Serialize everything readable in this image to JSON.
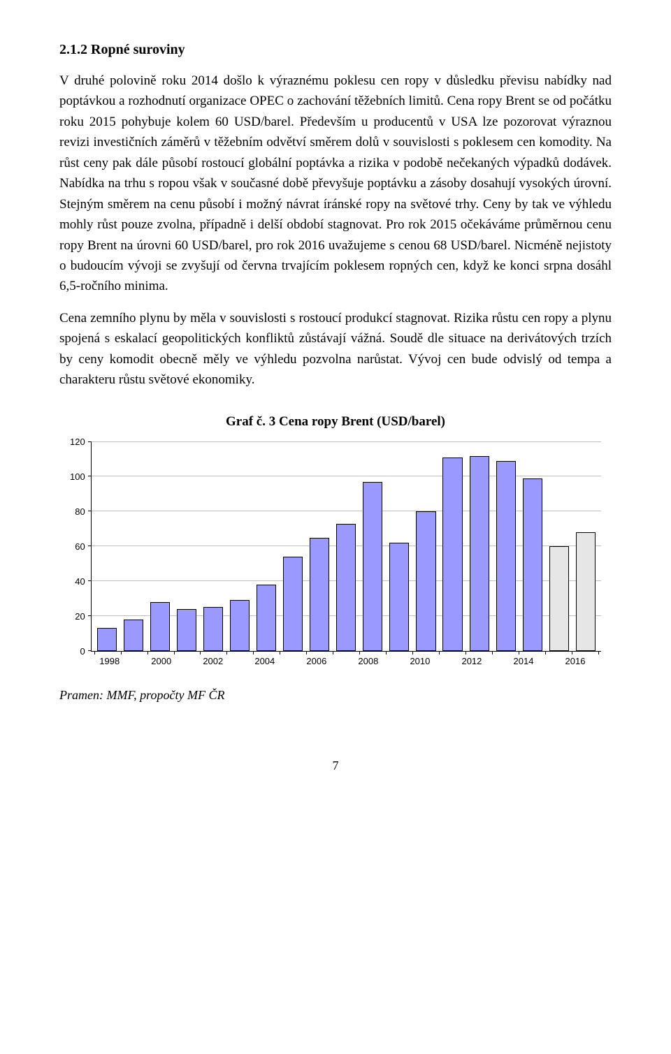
{
  "heading": "2.1.2  Ropné suroviny",
  "paragraphs": [
    "V druhé polovině roku 2014 došlo k výraznému poklesu cen ropy v důsledku převisu nabídky nad poptávkou a rozhodnutí organizace OPEC o zachování těžebních limitů. Cena ropy Brent se od počátku roku 2015 pohybuje kolem 60 USD/barel. Především u producentů v USA lze pozorovat výraznou revizi investičních záměrů v těžebním odvětví směrem dolů v souvislosti s poklesem cen komodity. Na růst ceny pak dále působí rostoucí globální poptávka a rizika v podobě nečekaných výpadků dodávek. Nabídka na trhu s ropou však v současné době převyšuje poptávku a zásoby dosahují vysokých úrovní. Stejným směrem na cenu působí i možný návrat íránské ropy na světové trhy. Ceny by tak ve výhledu mohly růst pouze zvolna, případně i delší období stagnovat. Pro rok 2015 očekáváme průměrnou cenu ropy Brent na úrovni 60 USD/barel, pro rok 2016 uvažujeme s cenou 68 USD/barel. Nicméně nejistoty o budoucím vývoji se zvyšují od června trvajícím poklesem ropných cen, když ke konci srpna dosáhl 6,5-ročního minima.",
    "Cena zemního plynu by měla v souvislosti s rostoucí produkcí stagnovat. Rizika růstu cen ropy a plynu spojená s eskalací geopolitických konfliktů zůstávají vážná. Soudě dle situace na derivátových trzích by ceny komodit obecně měly ve výhledu pozvolna narůstat. Vývoj cen bude odvislý od tempa a charakteru růstu světové ekonomiky."
  ],
  "chart": {
    "title": "Graf č. 3 Cena ropy Brent (USD/barel)",
    "type": "bar",
    "ylim": [
      0,
      120
    ],
    "yticks": [
      0,
      20,
      40,
      60,
      80,
      100,
      120
    ],
    "grid_color": "#bfbfbf",
    "background_color": "#ffffff",
    "axis_color": "#000000",
    "label_fontsize": 13,
    "categories": [
      "1998",
      "1999",
      "2000",
      "2001",
      "2002",
      "2003",
      "2004",
      "2005",
      "2006",
      "2007",
      "2008",
      "2009",
      "2010",
      "2011",
      "2012",
      "2013",
      "2014",
      "2015",
      "2016"
    ],
    "values": [
      13,
      18,
      28,
      24,
      25,
      29,
      38,
      54,
      65,
      73,
      97,
      62,
      80,
      111,
      112,
      109,
      99,
      60,
      68
    ],
    "bar_colors": [
      "#9999ff",
      "#9999ff",
      "#9999ff",
      "#9999ff",
      "#9999ff",
      "#9999ff",
      "#9999ff",
      "#9999ff",
      "#9999ff",
      "#9999ff",
      "#9999ff",
      "#9999ff",
      "#9999ff",
      "#9999ff",
      "#9999ff",
      "#9999ff",
      "#9999ff",
      "#e6e6e6",
      "#e6e6e6"
    ],
    "bar_border_color": "#000000",
    "x_labels_shown": [
      "1998",
      "2000",
      "2002",
      "2004",
      "2006",
      "2008",
      "2010",
      "2012",
      "2014",
      "2016"
    ]
  },
  "source": "Pramen: MMF, propočty MF ČR",
  "page_number": "7"
}
